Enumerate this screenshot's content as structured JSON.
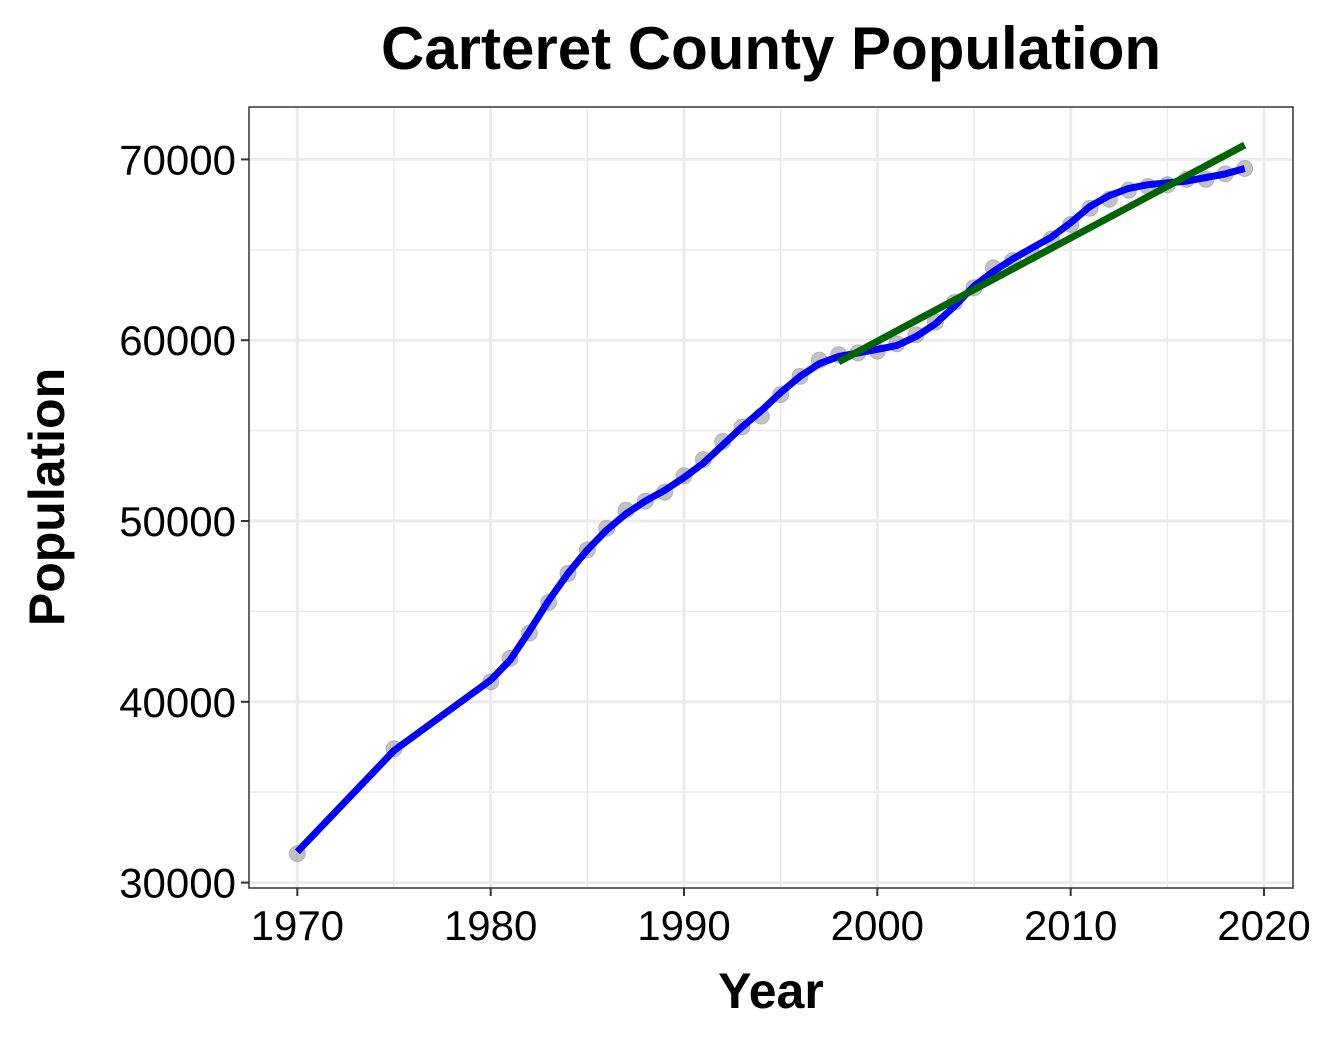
{
  "chart_data": {
    "type": "line",
    "title": "Carteret County Population",
    "xlabel": "Year",
    "ylabel": "Population",
    "xlim": [
      1967.5,
      2021.5
    ],
    "ylim": [
      29700,
      72900
    ],
    "xticks": [
      "1970",
      "1980",
      "1990",
      "2000",
      "2010",
      "2020"
    ],
    "yticks": [
      "30000",
      "40000",
      "50000",
      "60000",
      "70000"
    ],
    "grid": true,
    "colors": {
      "points": "#999999",
      "smooth": "#0000ff",
      "trend": "#006400",
      "grid": "#ebebeb",
      "panel_border": "#333333"
    },
    "series": [
      {
        "kind": "points",
        "x": [
          1970,
          1975,
          1980,
          1981,
          1982,
          1983,
          1984,
          1985,
          1986,
          1987,
          1988,
          1989,
          1990,
          1991,
          1992,
          1993,
          1994,
          1995,
          1996,
          1997,
          1998,
          1999,
          2000,
          2001,
          2002,
          2003,
          2004,
          2005,
          2006,
          2007,
          2008,
          2009,
          2010,
          2011,
          2012,
          2013,
          2014,
          2015,
          2016,
          2017,
          2018,
          2019
        ],
        "y": [
          31600,
          37400,
          41100,
          42400,
          43800,
          45500,
          47100,
          48400,
          49600,
          50600,
          51100,
          51600,
          52500,
          53400,
          54400,
          55200,
          55800,
          57000,
          58000,
          58900,
          59200,
          59300,
          59400,
          59800,
          60300,
          61000,
          62100,
          62900,
          64000,
          64400,
          64800,
          65600,
          66400,
          67300,
          67800,
          68300,
          68500,
          68600,
          68900,
          68900,
          69200,
          69500
        ]
      },
      {
        "kind": "smooth",
        "x": [
          1970,
          1975,
          1980,
          1981,
          1982,
          1983,
          1984,
          1985,
          1986,
          1987,
          1988,
          1989,
          1990,
          1991,
          1992,
          1993,
          1994,
          1995,
          1996,
          1997,
          1998,
          1999,
          2000,
          2001,
          2002,
          2003,
          2004,
          2005,
          2006,
          2007,
          2008,
          2009,
          2010,
          2011,
          2012,
          2013,
          2014,
          2015,
          2016,
          2017,
          2018,
          2019
        ],
        "y": [
          31700,
          37300,
          41200,
          42300,
          43900,
          45600,
          47100,
          48400,
          49500,
          50400,
          51100,
          51700,
          52400,
          53200,
          54200,
          55200,
          56100,
          57100,
          58000,
          58700,
          59100,
          59300,
          59500,
          59700,
          60200,
          60900,
          61900,
          63000,
          63800,
          64500,
          65100,
          65700,
          66500,
          67400,
          68000,
          68400,
          68600,
          68700,
          68800,
          69000,
          69200,
          69500
        ]
      },
      {
        "kind": "trend",
        "x": [
          1998,
          2019
        ],
        "y": [
          58800,
          70800
        ]
      }
    ]
  }
}
